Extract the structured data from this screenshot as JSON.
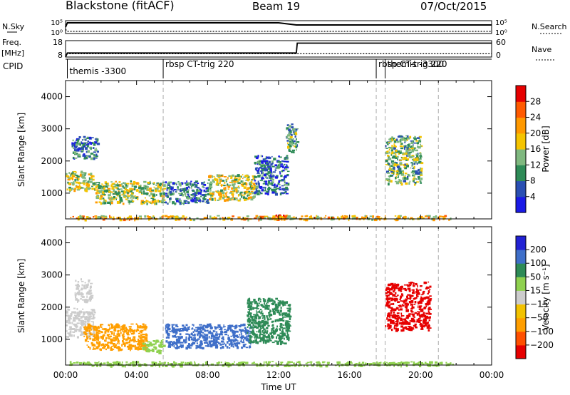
{
  "header": {
    "station": "Blackstone (fitACF)",
    "beam": "Beam 19",
    "date": "07/Oct/2015"
  },
  "top_labels": {
    "nsky": "N.Sky",
    "nsky_ticks": [
      "10^5",
      "10^0"
    ],
    "nsearch": "N.Search",
    "nsearch_ticks": [
      "10^5",
      "10^0"
    ],
    "freq": "Freq.",
    "freq_unit": "[MHz]",
    "freq_ticks": [
      "18",
      "8"
    ],
    "nave": "Nave",
    "nave_ticks": [
      "60",
      "0"
    ],
    "cpid": "CPID"
  },
  "cpid_events": [
    {
      "t": 0.1,
      "label": "themis -3300"
    },
    {
      "t": 5.5,
      "label": "rbsp CT-trig 220"
    },
    {
      "t": 17.5,
      "label": "rbsp CT-trig 220"
    },
    {
      "t": 18.0,
      "label": "themis -3300"
    }
  ],
  "event_lines_hours": [
    5.5,
    17.5,
    18.0,
    21.0
  ],
  "colors": {
    "power": [
      "#1a1ae6",
      "#2a4fb3",
      "#2e8b57",
      "#7fb87f",
      "#f5c400",
      "#ff9900",
      "#ff5a00",
      "#e60000"
    ],
    "velocity": [
      "#2222d4",
      "#3f6fc9",
      "#2e8b57",
      "#8fd14f",
      "#cccccc",
      "#f2c200",
      "#ff9e00",
      "#ff5000",
      "#e60000"
    ]
  },
  "chart_data": [
    {
      "type": "line",
      "panel": "noise",
      "x_unit": "hours UT",
      "xlim": [
        0,
        24
      ],
      "series": [
        {
          "name": "N.Sky",
          "x": [
            0,
            0.1,
            2,
            4,
            6,
            8,
            10,
            12,
            13,
            16,
            20,
            24
          ],
          "y": [
            3,
            5,
            5,
            5,
            5,
            5,
            5,
            5,
            4,
            4,
            4,
            4
          ]
        },
        {
          "name": "N.Search",
          "x": [
            0,
            0.1,
            2,
            4,
            6,
            8,
            10,
            12,
            13,
            16,
            20,
            24
          ],
          "y": [
            2,
            1,
            1,
            1,
            1,
            1,
            1,
            1,
            1,
            1,
            1,
            1
          ]
        }
      ]
    },
    {
      "type": "line",
      "panel": "freq_nave",
      "xlim": [
        0,
        24
      ],
      "series": [
        {
          "name": "Freq.",
          "x": [
            0,
            0.1,
            13,
            13.05,
            18,
            24
          ],
          "y": [
            8,
            10.5,
            10.5,
            16.5,
            16.5,
            16.5
          ]
        },
        {
          "name": "Nave",
          "x": [
            0,
            0.1,
            24
          ],
          "y": [
            0,
            12,
            12
          ]
        }
      ]
    },
    {
      "type": "heatmap",
      "panel": "power",
      "title": "",
      "xlabel": "",
      "ylabel": "Slant Range [km]",
      "xlim": [
        0,
        24
      ],
      "ylim": [
        200,
        4500
      ],
      "yticks": [
        1000,
        2000,
        3000,
        4000
      ],
      "colorbar": {
        "label": "Power [dB]",
        "ticks": [
          4,
          8,
          12,
          16,
          20,
          24,
          28
        ],
        "range": [
          0,
          30
        ]
      },
      "regions": [
        {
          "t0": 0.0,
          "t1": 1.6,
          "r0": 1100,
          "r1": 1700,
          "value": 16
        },
        {
          "t0": 0.3,
          "t1": 1.8,
          "r0": 2100,
          "r1": 2800,
          "value": 9
        },
        {
          "t0": 1.6,
          "t1": 5.5,
          "r0": 700,
          "r1": 1400,
          "value": 15
        },
        {
          "t0": 5.6,
          "t1": 8.0,
          "r0": 700,
          "r1": 1400,
          "value": 8
        },
        {
          "t0": 8.0,
          "t1": 10.6,
          "r0": 800,
          "r1": 1600,
          "value": 17
        },
        {
          "t0": 10.6,
          "t1": 12.5,
          "r0": 1000,
          "r1": 2200,
          "value": 7
        },
        {
          "t0": 12.4,
          "t1": 13.0,
          "r0": 2300,
          "r1": 3200,
          "value": 11
        },
        {
          "t0": 18.0,
          "t1": 20.0,
          "r0": 1300,
          "r1": 2800,
          "value": 13
        },
        {
          "t0": 11.5,
          "t1": 12.4,
          "r0": 200,
          "r1": 350,
          "value": 28
        },
        {
          "t0": 0.2,
          "t1": 21.8,
          "r0": 200,
          "r1": 320,
          "value": 19
        }
      ]
    },
    {
      "type": "heatmap",
      "panel": "velocity",
      "title": "",
      "xlabel": "Time UT",
      "ylabel": "Slant Range [km]",
      "xlim": [
        0,
        24
      ],
      "ylim": [
        200,
        4500
      ],
      "yticks": [
        1000,
        2000,
        3000,
        4000
      ],
      "xticks": [
        "00:00",
        "04:00",
        "08:00",
        "12:00",
        "16:00",
        "20:00",
        "00:00"
      ],
      "colorbar": {
        "label": "Velocity [m s⁻¹]",
        "ticks": [
          200,
          100,
          50,
          15,
          -15,
          -50,
          -100,
          -200
        ]
      },
      "regions": [
        {
          "t0": 0.0,
          "t1": 1.6,
          "r0": 1100,
          "r1": 2000,
          "value": 0
        },
        {
          "t0": 0.5,
          "t1": 1.4,
          "r0": 2200,
          "r1": 2900,
          "value": 0
        },
        {
          "t0": 1.0,
          "t1": 4.5,
          "r0": 700,
          "r1": 1500,
          "value": -60
        },
        {
          "t0": 4.3,
          "t1": 5.5,
          "r0": 600,
          "r1": 1000,
          "value": 25
        },
        {
          "t0": 5.6,
          "t1": 10.4,
          "r0": 750,
          "r1": 1500,
          "value": 150
        },
        {
          "t0": 10.2,
          "t1": 12.6,
          "r0": 900,
          "r1": 2300,
          "value": 60
        },
        {
          "t0": 18.0,
          "t1": 20.5,
          "r0": 1300,
          "r1": 2800,
          "value": -210
        },
        {
          "t0": 0.2,
          "t1": 22.0,
          "r0": 200,
          "r1": 330,
          "value": 30
        }
      ]
    }
  ]
}
